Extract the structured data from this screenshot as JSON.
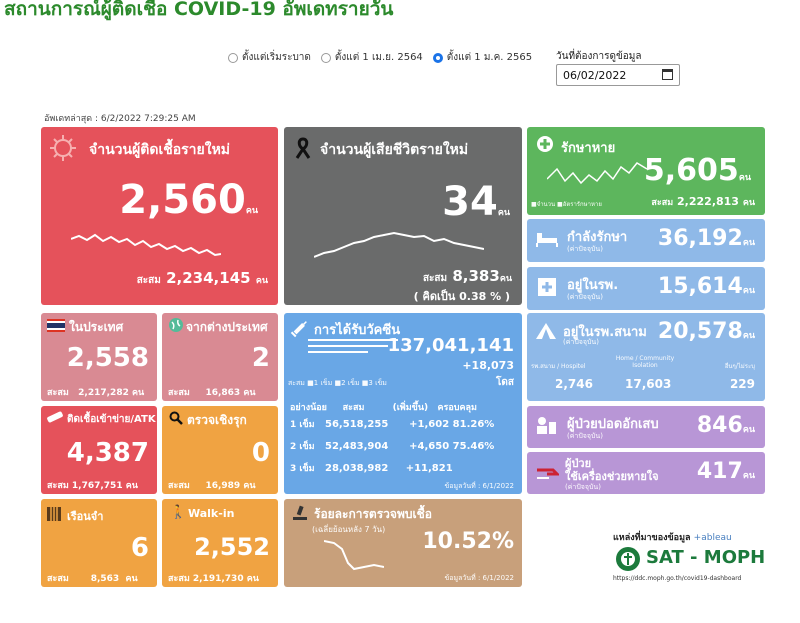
{
  "header": {
    "title": "สถานการณ์ผู้ติดเชื้อ COVID-19 อัพเดทรายวัน"
  },
  "filters": {
    "options": [
      "ตั้งแต่เริ่มระบาด",
      "ตั้งแต่ 1 เม.ย. 2564",
      "ตั้งแต่ 1 ม.ค. 2565"
    ],
    "selected_index": 2,
    "date_label": "วันที่ต้องการดูข้อมูล",
    "date_value": "06/02/2022"
  },
  "updated": "อัพเดทล่าสุด : 6/2/2022 7:29:25 AM",
  "unit": "คน",
  "cum_label": "สะสม",
  "new_cases": {
    "title": "จำนวนผู้ติดเชื้อรายใหม่",
    "value": "2,560",
    "cumulative": "2,234,145"
  },
  "deaths": {
    "title": "จำนวนผู้เสียชีวิตรายใหม่",
    "value": "34",
    "cumulative": "8,383",
    "pct_prefix": "( คิดเป็น",
    "pct": "0.38 % )"
  },
  "recovered": {
    "title": "รักษาหาย",
    "value": "5,605",
    "cumulative": "2,222,813",
    "legend_a": "จำนวน",
    "legend_b": "อัตรารักษาหาย"
  },
  "treating": {
    "title": "กำลังรักษา",
    "sub": "(ค่าปัจจุบัน)",
    "value": "36,192"
  },
  "hospital": {
    "title": "อยู่ในรพ.",
    "sub": "(ค่าปัจจุบัน)",
    "value": "15,614"
  },
  "domestic": {
    "title": "ในประเทศ",
    "value": "2,558",
    "cumulative": "2,217,282"
  },
  "abroad": {
    "title": "จากต่างประเทศ",
    "value": "2",
    "cumulative": "16,863"
  },
  "atk": {
    "title": "ติดเชื้อเข้าข่าย/ATK",
    "value": "4,387",
    "cumulative": "1,767,751"
  },
  "proactive": {
    "title": "ตรวจเชิงรุก",
    "value": "0",
    "cumulative": "16,989"
  },
  "prison": {
    "title": "เรือนจำ",
    "value": "6",
    "cumulative": "8,563"
  },
  "walkin": {
    "title": "Walk-in",
    "value": "2,552",
    "cumulative": "2,191,730"
  },
  "vaccine": {
    "title": "การได้รับวัคซีน",
    "total": "137,041,141",
    "increase": "+18,073",
    "dose_unit": "โดส",
    "legend": [
      "สะสม",
      "1 เข็ม",
      "2 เข็ม",
      "3 เข็ม"
    ],
    "headers": [
      "อย่างน้อย",
      "สะสม",
      "(เพิ่มขึ้น)",
      "ครอบคลุม"
    ],
    "rows": [
      {
        "dose": "1 เข็ม",
        "cum": "56,518,255",
        "inc": "+1,602",
        "cov": "81.26%"
      },
      {
        "dose": "2 เข็ม",
        "cum": "52,483,904",
        "inc": "+4,650",
        "cov": "75.46%"
      },
      {
        "dose": "3 เข็ม",
        "cum": "28,038,982",
        "inc": "+11,821",
        "cov": ""
      }
    ],
    "data_date": "ข้อมูลวันที่ : 6/1/2022"
  },
  "positivity": {
    "title": "ร้อยละการตรวจพบเชื้อ",
    "sub": "(เฉลี่ยย้อนหลัง 7 วัน)",
    "value": "10.52%",
    "data_date": "ข้อมูลวันที่ : 6/1/2022"
  },
  "field_hospital": {
    "title": "อยู่ในรพ.สนาม",
    "sub": "(ค่าปัจจุบัน)",
    "value": "20,578",
    "cols": [
      "รพ.สนาม / Hospitel",
      "Home / Community Isolation",
      "อื่นๆ/ไม่ระบุ"
    ],
    "vals": [
      "2,746",
      "17,603",
      "229"
    ]
  },
  "severe": {
    "title": "ผู้ป่วยปอดอักเสบ",
    "sub": "(ค่าปัจจุบัน)",
    "value": "846"
  },
  "ventilator": {
    "title1": "ผู้ป่วย",
    "title2": "ใช้เครื่องช่วยหายใจ",
    "sub": "(ค่าปัจจุบัน)",
    "value": "417"
  },
  "source": {
    "label": "แหล่งที่มาของข้อมูล",
    "tableau": "+ableau",
    "org": "SAT - MOPH",
    "url": "https://ddc.moph.go.th/covid19-dashboard"
  },
  "colors": {
    "red": "#e5525b",
    "gray": "#6a6b6b",
    "green": "#5db65d",
    "lightblue": "#8fb9e8",
    "pink": "#d98a93",
    "orange": "#f0a342",
    "blue": "#69a7e6",
    "tan": "#c8a07b",
    "violet": "#b896d6",
    "title_green": "#2c8a2c"
  }
}
